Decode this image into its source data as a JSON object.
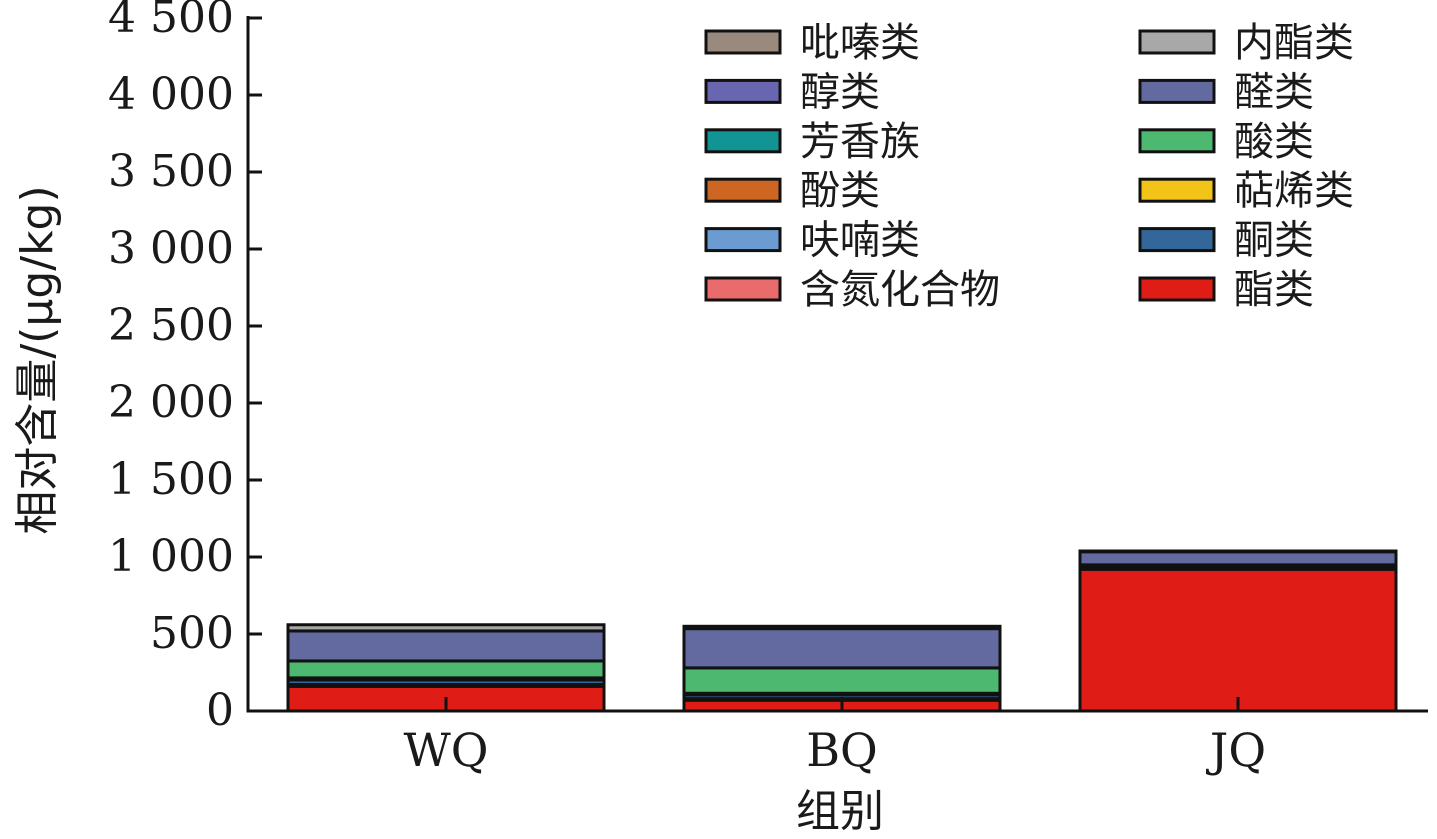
{
  "chart_data": {
    "type": "bar",
    "stacked": true,
    "xlabel": "组别",
    "ylabel": "相对含量/(μg/kg)",
    "ylim": [
      0,
      4500
    ],
    "yticks": [
      0,
      500,
      1000,
      1500,
      2000,
      2500,
      3000,
      3500,
      4000,
      4500
    ],
    "ytick_labels": [
      "0",
      "500",
      "1 000",
      "1 500",
      "2 000",
      "2 500",
      "3 000",
      "3 500",
      "4 000",
      "4 500"
    ],
    "categories": [
      "WQ",
      "BQ",
      "JQ"
    ],
    "legend_position": "top-right",
    "series": [
      {
        "name": "酯类",
        "color": "#e01c17",
        "values": [
          160,
          70,
          920
        ]
      },
      {
        "name": "含氮化合物",
        "color": "#ea6b6b",
        "values": [
          12,
          10,
          5
        ]
      },
      {
        "name": "酮类",
        "color": "#336699",
        "values": [
          30,
          25,
          8
        ]
      },
      {
        "name": "呋喃类",
        "color": "#6b9bd0",
        "values": [
          8,
          6,
          4
        ]
      },
      {
        "name": "萜烯类",
        "color": "#f2c418",
        "values": [
          5,
          4,
          2
        ]
      },
      {
        "name": "酚类",
        "color": "#cc6622",
        "values": [
          0,
          0,
          0
        ]
      },
      {
        "name": "酸类",
        "color": "#4db870",
        "values": [
          110,
          165,
          10
        ]
      },
      {
        "name": "芳香族",
        "color": "#139494",
        "values": [
          0,
          0,
          0
        ]
      },
      {
        "name": "醛类",
        "color": "#626a9f",
        "values": [
          195,
          255,
          85
        ]
      },
      {
        "name": "醇类",
        "color": "#6866b0",
        "values": [
          0,
          0,
          0
        ]
      },
      {
        "name": "内酯类",
        "color": "#a8a8a8",
        "values": [
          40,
          15,
          5
        ]
      },
      {
        "name": "吡嗪类",
        "color": "#9a8a7e",
        "values": [
          0,
          0,
          0
        ]
      }
    ],
    "legend": [
      {
        "name": "吡嗪类",
        "color": "#9a8a7e"
      },
      {
        "name": "内酯类",
        "color": "#a8a8a8"
      },
      {
        "name": "醇类",
        "color": "#6866b0"
      },
      {
        "name": "醛类",
        "color": "#626a9f"
      },
      {
        "name": "芳香族",
        "color": "#139494"
      },
      {
        "name": "酸类",
        "color": "#4db870"
      },
      {
        "name": "酚类",
        "color": "#cc6622"
      },
      {
        "name": "萜烯类",
        "color": "#f2c418"
      },
      {
        "name": "呋喃类",
        "color": "#6b9bd0"
      },
      {
        "name": "酮类",
        "color": "#336699"
      },
      {
        "name": "含氮化合物",
        "color": "#ea6b6b"
      },
      {
        "name": "酯类",
        "color": "#e01c17"
      }
    ]
  }
}
